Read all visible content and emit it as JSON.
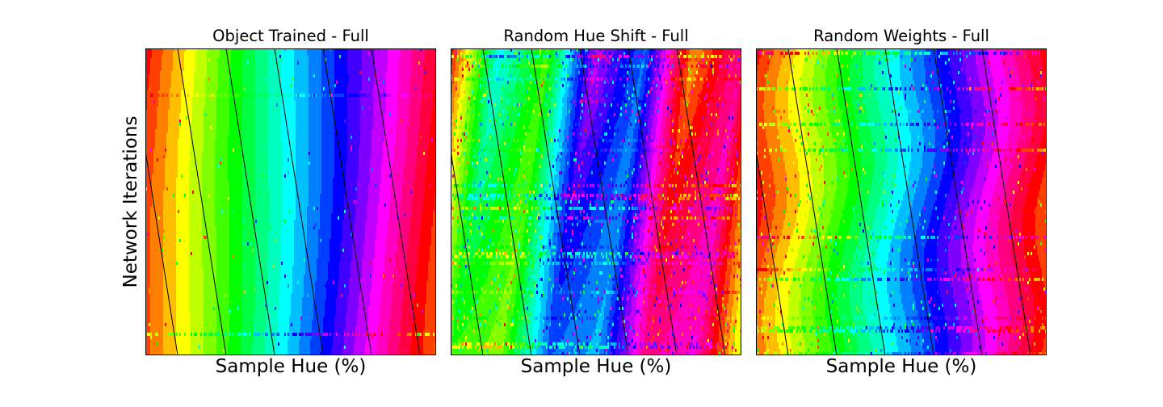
{
  "ylabel": "Network Iterations",
  "chart_data": [
    {
      "type": "heatmap",
      "title": "Object Trained - Full",
      "xlabel": "Sample Hue (%)",
      "ylabel": "Network Iterations",
      "colormap": "hsv",
      "hue_order_left_to_right": [
        "red",
        "yellow",
        "green",
        "cyan",
        "blue",
        "magenta",
        "red"
      ],
      "diagonal_reference_lines": 6,
      "noise": "low",
      "grid": false,
      "ticks": false
    },
    {
      "type": "heatmap",
      "title": "Random Hue Shift - Full",
      "xlabel": "Sample Hue (%)",
      "colormap": "hsv",
      "hue_order_left_to_right": [
        "red",
        "yellow",
        "green",
        "cyan",
        "blue",
        "magenta",
        "red"
      ],
      "diagonal_reference_lines": 6,
      "noise": "high",
      "pattern": "interleaved triangular bands",
      "grid": false,
      "ticks": false
    },
    {
      "type": "heatmap",
      "title": "Random Weights - Full",
      "xlabel": "Sample Hue (%)",
      "colormap": "hsv",
      "hue_order_left_to_right": [
        "red",
        "yellow",
        "green",
        "cyan",
        "blue",
        "magenta",
        "red"
      ],
      "diagonal_reference_lines": 6,
      "noise": "medium",
      "grid": false,
      "ticks": false
    }
  ]
}
